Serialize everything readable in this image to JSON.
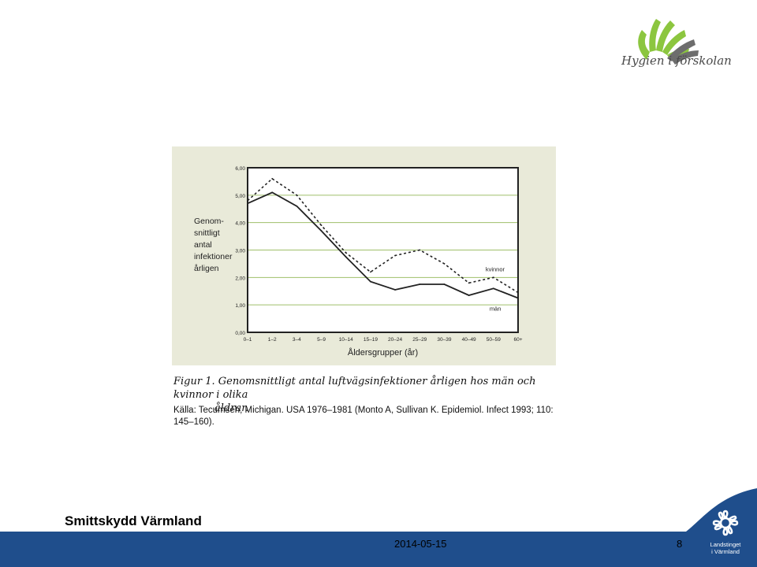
{
  "header": {
    "logo_text": "Hygien i förskolan"
  },
  "chart_data": {
    "type": "line",
    "title": "",
    "xlabel": "Åldersgrupper (år)",
    "ylabel": "Genom-snittligt antal infektioner årligen",
    "ylabel_lines": [
      "Genom-",
      "snittligt",
      "antal",
      "infektioner",
      "årligen"
    ],
    "categories": [
      "0–1",
      "1–2",
      "3–4",
      "5–9",
      "10–14",
      "15–19",
      "20–24",
      "25–29",
      "30–39",
      "40–49",
      "50–59",
      "60+"
    ],
    "ylim": [
      0,
      6
    ],
    "yticks": [
      "0,00",
      "1,00",
      "2,00",
      "3,00",
      "4,00",
      "5,00",
      "6,00"
    ],
    "grid": true,
    "series": [
      {
        "name": "kvinnor",
        "style": "dashed",
        "color": "#222222",
        "values": [
          4.8,
          5.6,
          5.0,
          3.9,
          2.9,
          2.2,
          2.8,
          3.0,
          2.5,
          1.8,
          2.0,
          1.45
        ]
      },
      {
        "name": "män",
        "style": "solid",
        "color": "#222222",
        "values": [
          4.7,
          5.1,
          4.6,
          3.7,
          2.75,
          1.85,
          1.55,
          1.75,
          1.75,
          1.35,
          1.6,
          1.25
        ]
      }
    ]
  },
  "caption": {
    "line1": "Figur 1. Genomsnittligt antal luftvägsinfektioner årligen hos män och kvinnor i olika",
    "line2": "åldrar.",
    "source": "Källa: Tecumseh, Michigan. USA 1976–1981 (Monto A, Sullivan K. Epidemiol. Infect 1993; 110: 145–160)."
  },
  "footer": {
    "title": "Smittskydd Värmland",
    "date": "2014-05-15",
    "page": "8",
    "org": "Landstinget i Värmland"
  },
  "colors": {
    "footer_bar": "#1f4e8c",
    "chart_bg": "#e9ead9",
    "grid": "#9fbf6a",
    "logo_green": "#8cc63f"
  }
}
